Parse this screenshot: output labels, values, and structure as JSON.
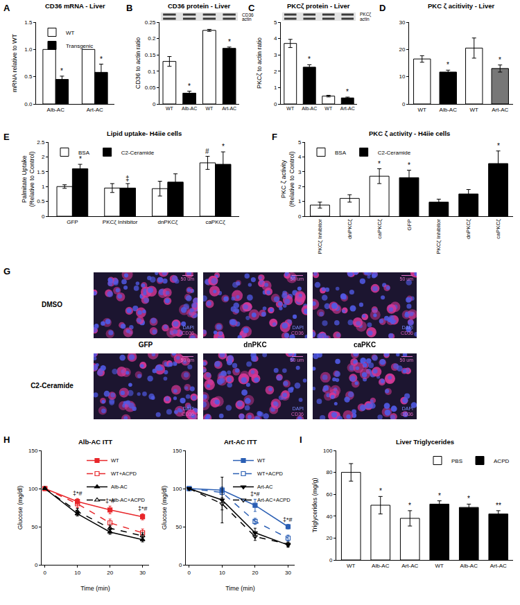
{
  "chart_data": [
    {
      "panel": "A",
      "type": "bar",
      "title": "CD36 mRNA - Liver",
      "ylabel": "mRNA relative to WT",
      "categories": [
        "Alb-AC",
        "Art-AC"
      ],
      "series": [
        {
          "name": "WT",
          "color": "#ffffff",
          "values": [
            1,
            1
          ]
        },
        {
          "name": "Transgenic",
          "color": "#000000",
          "values": [
            0.45,
            0.58
          ],
          "errors": [
            0.06,
            0.15
          ],
          "significance": [
            "*",
            "*"
          ]
        }
      ],
      "ylim": [
        0,
        1.5
      ],
      "yticks": [
        {
          "value": 0,
          "label": "0.0"
        },
        {
          "value": 0.5,
          "label": "0.5"
        },
        {
          "value": 1,
          "label": "1.0"
        },
        1.5
      ],
      "legend": "top left",
      "grid": false
    },
    {
      "panel": "B",
      "type": "bar",
      "title": "CD36 protein - Liver",
      "ylabel": "CD36 to actin ratio",
      "categories": [
        "WT",
        "Alb-AC",
        "WT",
        "Art-AC"
      ],
      "values": [
        0.13,
        0.033,
        0.225,
        0.17
      ],
      "errors": [
        0.015,
        0.006,
        0.003,
        0.004
      ],
      "colors": [
        "#ffffff",
        "#000000",
        "#ffffff",
        "#000000"
      ],
      "significance": [
        null,
        "*",
        null,
        "*"
      ],
      "blot_labels": [
        "CD36",
        "actin"
      ],
      "ylim": [
        0,
        0.25
      ],
      "yticks": [
        0,
        0.05,
        0.1,
        0.15,
        0.2,
        0.25
      ],
      "grid": false
    },
    {
      "panel": "C",
      "type": "bar",
      "title": "PKCζ protein - Liver",
      "ylabel": "PKCζ to actin ratio",
      "categories": [
        "WT",
        "Alb-AC",
        "WT",
        "Art-AC"
      ],
      "values": [
        3.7,
        2.25,
        0.48,
        0.37
      ],
      "errors": [
        0.25,
        0.15,
        0.05,
        0.05
      ],
      "colors": [
        "#ffffff",
        "#000000",
        "#ffffff",
        "#000000"
      ],
      "significance": [
        null,
        "*",
        null,
        "*"
      ],
      "blot_labels": [
        "PKCζ",
        "actin"
      ],
      "ylim": [
        0,
        5
      ],
      "yticks": [
        0,
        1,
        2,
        3,
        4,
        5
      ],
      "grid": false
    },
    {
      "panel": "D",
      "type": "bar",
      "title": "PKC ζ acitivity - Liver",
      "categories": [
        "WT",
        "Alb-AC",
        "WT",
        "Art-AC"
      ],
      "values": [
        16.5,
        11.7,
        20.5,
        13
      ],
      "errors": [
        1.2,
        0.7,
        3.7,
        1.3
      ],
      "colors": [
        "#ffffff",
        "#000000",
        "#ffffff",
        "#777777"
      ],
      "significance": [
        null,
        "*",
        null,
        "*"
      ],
      "ylim": [
        0,
        30
      ],
      "yticks": [
        0,
        10,
        20,
        30
      ],
      "grid": false
    },
    {
      "panel": "E",
      "type": "bar",
      "title": "Lipid uptake- H4iie cells",
      "ylabel": "Palmitate Uptake\n(Relative to Control)",
      "categories": [
        "GFP",
        "PKCζ Inhibitor",
        "dnPKCζ",
        "caPKCζ"
      ],
      "series": [
        {
          "name": "BSA",
          "color": "#ffffff",
          "values": [
            1.0,
            0.95,
            0.93,
            1.8
          ],
          "errors": [
            0.06,
            0.15,
            0.25,
            0.22
          ],
          "significance": [
            null,
            null,
            null,
            "#"
          ]
        },
        {
          "name": "C2-Ceramide",
          "color": "#000000",
          "values": [
            1.6,
            0.95,
            1.15,
            1.75
          ],
          "errors": [
            0.15,
            0.15,
            0.28,
            0.42
          ],
          "significance": [
            "*",
            "‡",
            null,
            "*"
          ]
        }
      ],
      "ylim": [
        0,
        2.5
      ],
      "yticks": [
        0,
        0.5,
        1,
        1.5,
        2,
        2.5
      ],
      "legend": "top left",
      "grid": false
    },
    {
      "panel": "F",
      "type": "bar",
      "title": "PKC ζ activity - H4iie cells",
      "ylabel": "PKC ζ activity\n(Relative to Control)",
      "categories": [
        "PKCζ Inhibitor",
        "dnPKCζ",
        "caPKCζ",
        "GFP",
        "PKCζ Inhibitor",
        "dnPKCζ",
        "caPKCζ"
      ],
      "series": [
        {
          "name": "BSA",
          "color": "#ffffff",
          "values": [
            0.75,
            1.2,
            2.7,
            null,
            null,
            null,
            null
          ],
          "errors": [
            0.2,
            0.25,
            0.5,
            null,
            null,
            null,
            null
          ],
          "significance": [
            null,
            null,
            "*",
            null,
            null,
            null,
            null
          ]
        },
        {
          "name": "C2-Ceramide",
          "color": "#000000",
          "values": [
            null,
            null,
            null,
            2.6,
            0.95,
            1.5,
            3.55
          ],
          "errors": [
            null,
            null,
            null,
            0.5,
            0.2,
            0.3,
            0.85
          ],
          "significance": [
            null,
            null,
            null,
            "*",
            null,
            null,
            "*"
          ]
        }
      ],
      "ylim": [
        0,
        5
      ],
      "yticks": [
        0,
        1,
        2,
        3,
        4,
        5
      ],
      "legend": "top left",
      "grid": false
    },
    {
      "panel": "H",
      "type": "line",
      "title": "Alb-AC ITT",
      "xlabel": "Time (min)",
      "ylabel": "Glucose (mg/dl)",
      "x": [
        0,
        10,
        20,
        30
      ],
      "series": [
        {
          "name": "WT",
          "color": "#e8262a",
          "marker": "square",
          "line_style": "solid",
          "values": [
            100,
            83,
            72,
            63
          ],
          "errors": [
            0,
            4,
            5,
            4
          ],
          "significance": [
            null,
            "‡*#",
            "‡*#",
            "‡*#"
          ]
        },
        {
          "name": "WT+ACPD",
          "color": "#e8262a",
          "marker": "square-open",
          "line_style": "dashed",
          "values": [
            100,
            80,
            55,
            42
          ],
          "errors": [
            0,
            5,
            5,
            5
          ]
        },
        {
          "name": "Alb-AC",
          "color": "#000000",
          "marker": "triangle-up",
          "line_style": "solid",
          "values": [
            100,
            67,
            43,
            33
          ],
          "errors": [
            0,
            3,
            3,
            3
          ]
        },
        {
          "name": "Alb-AC+ACPD",
          "color": "#000000",
          "marker": "triangle-up-open",
          "line_style": "dashed",
          "values": [
            100,
            70,
            48,
            38
          ],
          "errors": [
            0,
            4,
            4,
            4
          ]
        }
      ],
      "xlim": [
        -1,
        32
      ],
      "xticks": [
        0,
        10,
        20,
        30
      ],
      "ylim": [
        0,
        150
      ],
      "yticks": [
        0,
        50,
        100,
        150
      ],
      "legend": "top right",
      "grid": false
    },
    {
      "type": "line",
      "title": "Art-AC ITT",
      "xlabel": "Time (min)",
      "ylabel": "Glucose (mg/dl)",
      "x": [
        0,
        10,
        20,
        30
      ],
      "series": [
        {
          "name": "WT",
          "color": "#2b5fb4",
          "marker": "square",
          "line_style": "solid",
          "values": [
            100,
            98,
            78,
            50
          ],
          "errors": [
            0,
            4,
            8,
            3
          ],
          "significance": [
            null,
            null,
            "‡*#",
            "‡*#"
          ]
        },
        {
          "name": "WT+ACPD",
          "color": "#2b5fb4",
          "marker": "square-open",
          "line_style": "dashed",
          "values": [
            100,
            95,
            57,
            35
          ],
          "errors": [
            0,
            3,
            4,
            4
          ]
        },
        {
          "name": "Art-AC",
          "color": "#000000",
          "marker": "triangle-down",
          "line_style": "solid",
          "values": [
            100,
            85,
            42,
            26
          ],
          "errors": [
            0,
            30,
            6,
            3
          ]
        },
        {
          "name": "Art-AC+ACPD",
          "color": "#000000",
          "marker": "triangle-down-open",
          "line_style": "dashed",
          "values": [
            100,
            80,
            37,
            27
          ],
          "errors": [
            0,
            8,
            5,
            3
          ]
        }
      ],
      "xlim": [
        -1,
        32
      ],
      "xticks": [
        0,
        10,
        20,
        30
      ],
      "ylim": [
        0,
        150
      ],
      "yticks": [
        0,
        50,
        100,
        150
      ],
      "legend": "top right",
      "grid": false
    },
    {
      "panel": "I",
      "type": "bar",
      "title": "Liver Triglycerides",
      "ylabel": "Triglycerides (mg/g)",
      "categories": [
        "WT",
        "Alb-AC",
        "Art-AC",
        "WT",
        "Alb-AC",
        "Art-AC"
      ],
      "series": [
        {
          "name": "PBS",
          "color": "#ffffff",
          "values": [
            80,
            50,
            38,
            null,
            null,
            null
          ],
          "errors": [
            8,
            8,
            7,
            null,
            null,
            null
          ],
          "significance": [
            null,
            "*",
            "*",
            null,
            null,
            null
          ]
        },
        {
          "name": "ACPD",
          "color": "#000000",
          "values": [
            null,
            null,
            null,
            51,
            48,
            42
          ],
          "errors": [
            null,
            null,
            null,
            3,
            3,
            3
          ],
          "significance": [
            null,
            null,
            null,
            "*",
            "*",
            "**"
          ]
        }
      ],
      "ylim": [
        0,
        100
      ],
      "yticks": [
        0,
        20,
        40,
        60,
        80,
        100
      ],
      "legend": "top right",
      "grid": false
    }
  ],
  "micrographs": {
    "panel": "G",
    "row_labels": [
      "DMSO",
      "C2-Ceramide"
    ],
    "column_labels": [
      "GFP",
      "dnPKC",
      "caPKC"
    ],
    "scale_bar": "50 um",
    "stain_labels": [
      "DAPI",
      "CD36"
    ]
  }
}
